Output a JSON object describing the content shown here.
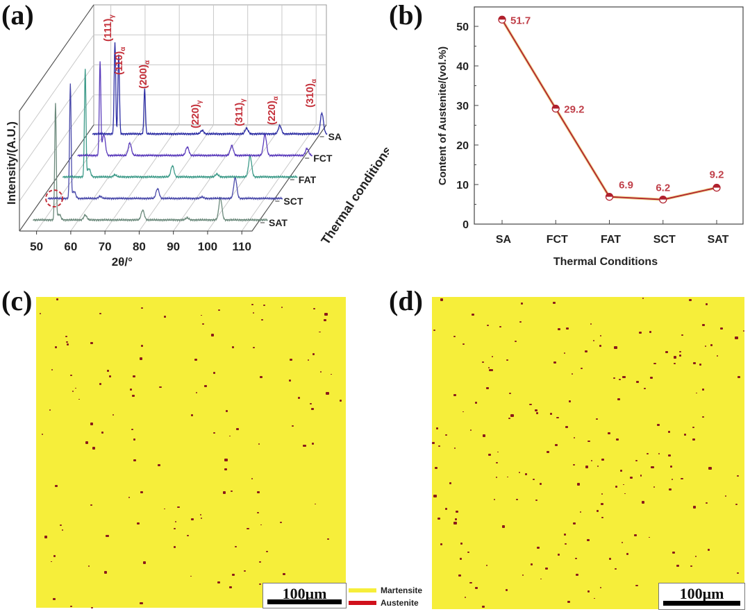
{
  "panels": {
    "a": "(a)",
    "b": "(b)",
    "c": "(c)",
    "d": "(d)"
  },
  "chart_data": [
    {
      "type": "line",
      "panel": "a",
      "style": "3d-waterfall",
      "xlabel": "2θ/°",
      "ylabel": "Intensity/(A.U.)",
      "zlabel": "Thermal conditions",
      "xticks": [
        50,
        60,
        70,
        80,
        90,
        100,
        110
      ],
      "xlim": [
        45,
        113
      ],
      "grid": true,
      "series": [
        {
          "name": "SA",
          "color": "#2b2ca3",
          "peaks": [
            [
              53.5,
              132
            ],
            [
              54.6,
              115
            ],
            [
              62.2,
              65
            ],
            [
              79,
              5
            ],
            [
              92,
              8
            ],
            [
              101.7,
              12
            ],
            [
              114,
              30
            ]
          ]
        },
        {
          "name": "FCT",
          "color": "#5b3cbc",
          "peaks": [
            [
              53.5,
              134
            ],
            [
              54.6,
              30
            ],
            [
              62.2,
              18
            ],
            [
              79,
              12
            ],
            [
              92,
              14
            ],
            [
              101.7,
              30
            ],
            [
              114,
              10
            ]
          ]
        },
        {
          "name": "FAT",
          "color": "#3c9a88",
          "peaks": [
            [
              53.5,
              155
            ],
            [
              54.6,
              12
            ],
            [
              62.2,
              3
            ],
            [
              79,
              16
            ],
            [
              92,
              4
            ],
            [
              101.7,
              30
            ]
          ]
        },
        {
          "name": "SCT",
          "color": "#4a4aaa",
          "peaks": [
            [
              53.5,
              165
            ],
            [
              54.6,
              10
            ],
            [
              62.2,
              3
            ],
            [
              79,
              14
            ],
            [
              92,
              2
            ],
            [
              101.7,
              30
            ]
          ]
        },
        {
          "name": "SAT",
          "color": "#6c8a7c",
          "peaks": [
            [
              53.5,
              168
            ],
            [
              54.6,
              8
            ],
            [
              62.2,
              7
            ],
            [
              79,
              14
            ],
            [
              92,
              3
            ],
            [
              101.7,
              32
            ]
          ]
        }
      ],
      "peak_labels": [
        {
          "hkl": "(111)",
          "phase": "γ",
          "x": 53.5
        },
        {
          "hkl": "(110)",
          "phase": "α",
          "x": 54.6
        },
        {
          "hkl": "(200)",
          "phase": "α",
          "x": 62.2
        },
        {
          "hkl": "(220)",
          "phase": "γ",
          "x": 79
        },
        {
          "hkl": "(311)",
          "phase": "γ",
          "x": 92
        },
        {
          "hkl": "(220)",
          "phase": "α",
          "x": 101.7
        },
        {
          "hkl": "(310)",
          "phase": "α",
          "x": 114
        }
      ],
      "label_color": "#c4303a",
      "annotation": "dashed red circle around small peak near 54° on SCT/SAT"
    },
    {
      "type": "line",
      "panel": "b",
      "categories": [
        "SA",
        "FCT",
        "FAT",
        "SCT",
        "SAT"
      ],
      "values": [
        51.7,
        29.2,
        6.9,
        6.2,
        9.2
      ],
      "data_labels": [
        "51.7",
        "29.2",
        "6.9",
        "6.2",
        "9.2"
      ],
      "xlabel": "Thermal Conditions",
      "ylabel": "Content of Austenite/(vol.%)",
      "ylim": [
        0,
        55
      ],
      "yticks": [
        0,
        10,
        20,
        30,
        40,
        50
      ],
      "line_color": "#b0202c",
      "label_color": "#c0404a",
      "grid": false
    }
  ],
  "maps": {
    "scale_bar": "100μm",
    "legend": [
      {
        "label": "Martensite",
        "color": "#f6ee3a"
      },
      {
        "label": "Austenite",
        "color": "#d0101c"
      }
    ],
    "background_color": "#f6ee3a",
    "dot_color": "#8a1a1a"
  }
}
